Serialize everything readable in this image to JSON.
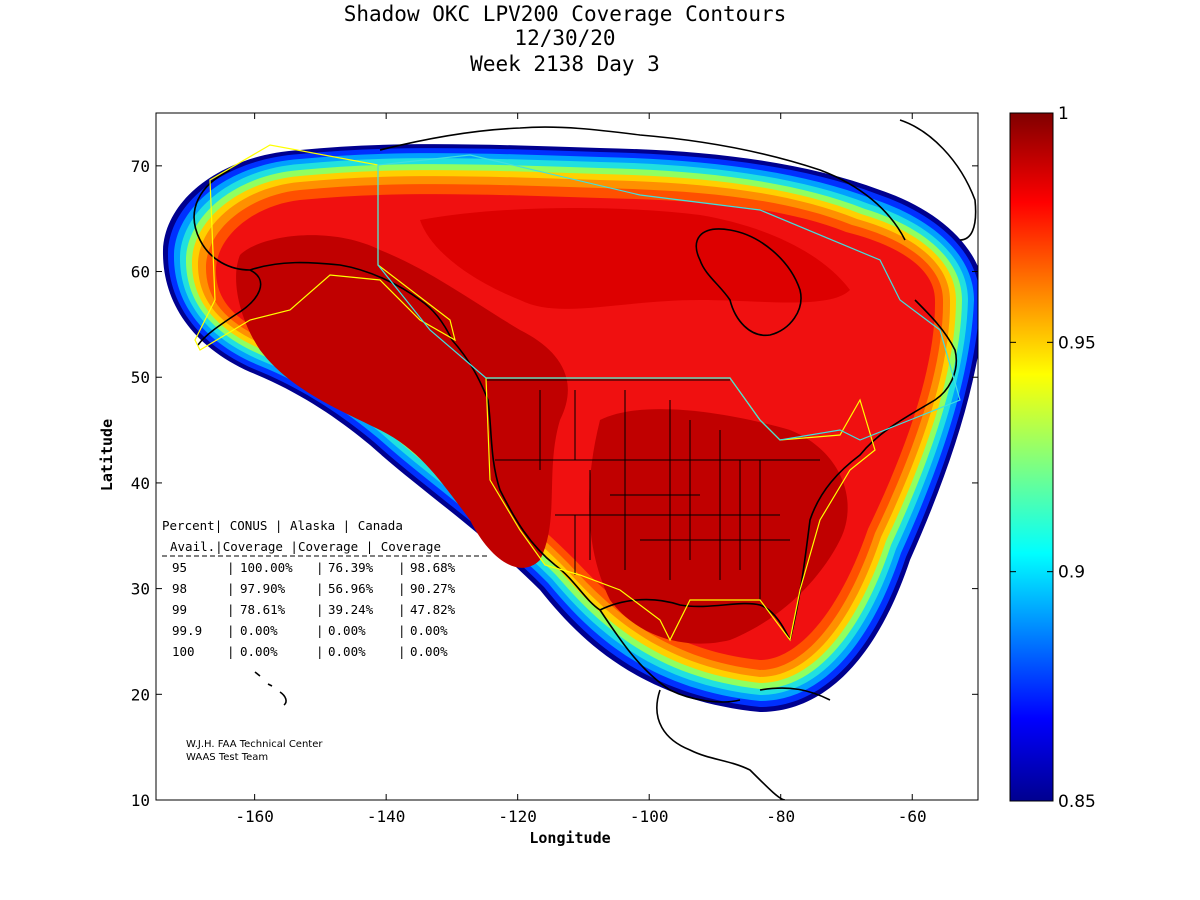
{
  "title": {
    "line1": "Shadow OKC LPV200 Coverage Contours",
    "line2": "12/30/20",
    "line3": "Week 2138 Day 3"
  },
  "axes": {
    "xlabel": "Longitude",
    "ylabel": "Latitude",
    "xlim": [
      -175,
      -50
    ],
    "ylim": [
      10,
      75
    ],
    "xticks": [
      -160,
      -140,
      -120,
      -100,
      -80,
      -60
    ],
    "yticks": [
      10,
      20,
      30,
      40,
      50,
      60,
      70
    ]
  },
  "colorbar": {
    "range": [
      0.85,
      1
    ],
    "ticks": [
      "1",
      "0.95",
      "0.9",
      "0.85"
    ],
    "tick_values": [
      1,
      0.95,
      0.9,
      0.85
    ]
  },
  "table": {
    "header1": [
      "Percent",
      "CONUS",
      "Alaska",
      "Canada"
    ],
    "header2": [
      "Avail.",
      "Coverage",
      "Coverage",
      "Coverage"
    ],
    "rows": [
      [
        "95",
        "100.00%",
        "76.39%",
        "98.68%"
      ],
      [
        "98",
        "97.90%",
        "56.96%",
        "90.27%"
      ],
      [
        "99",
        "78.61%",
        "39.24%",
        "47.82%"
      ],
      [
        "99.9",
        "0.00%",
        "0.00%",
        "0.00%"
      ],
      [
        "100",
        "0.00%",
        "0.00%",
        "0.00%"
      ]
    ]
  },
  "credit": {
    "line1": "W.J.H. FAA Technical Center",
    "line2": "WAAS Test Team"
  }
}
